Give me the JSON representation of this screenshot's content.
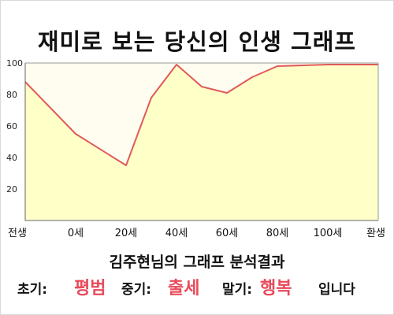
{
  "header": {
    "title": "재미로 보는 당신의 인생 그래프"
  },
  "chart_data": {
    "type": "area",
    "title": "재미로 보는 당신의 인생 그래프",
    "xlabel": "",
    "ylabel": "",
    "ylim": [
      0,
      100
    ],
    "yticks": [
      "100",
      "80",
      "60",
      "40",
      "20"
    ],
    "x_categories": [
      "전생",
      "0세",
      "20세",
      "40세",
      "60세",
      "80세",
      "100세",
      "환생"
    ],
    "series": [
      {
        "x_index": [
          0,
          1,
          2,
          3,
          4,
          5,
          6,
          7
        ],
        "values": [
          88,
          55,
          35,
          99,
          81,
          98,
          99,
          99
        ],
        "intermediate_points": [
          {
            "x_between": [
              2.5,
              0
            ],
            "value": 78
          },
          {
            "x_between": [
              3.5,
              0
            ],
            "value": 85
          },
          {
            "x_between": [
              4.5,
              0
            ],
            "value": 91
          }
        ]
      }
    ],
    "colors": {
      "line": "#e05a5a",
      "fill_upper": "#fffdf0",
      "fill_lower": "#ffffc8"
    },
    "grid": false
  },
  "result": {
    "subtitle": "김주현님의 그래프 분석결과",
    "early_label": "초기:",
    "early_value": "평범",
    "mid_label": "중기:",
    "mid_value": "출세",
    "late_label": "말기:",
    "late_value": "행복",
    "ending": "입니다",
    "accent_color": "#e84a5a"
  }
}
